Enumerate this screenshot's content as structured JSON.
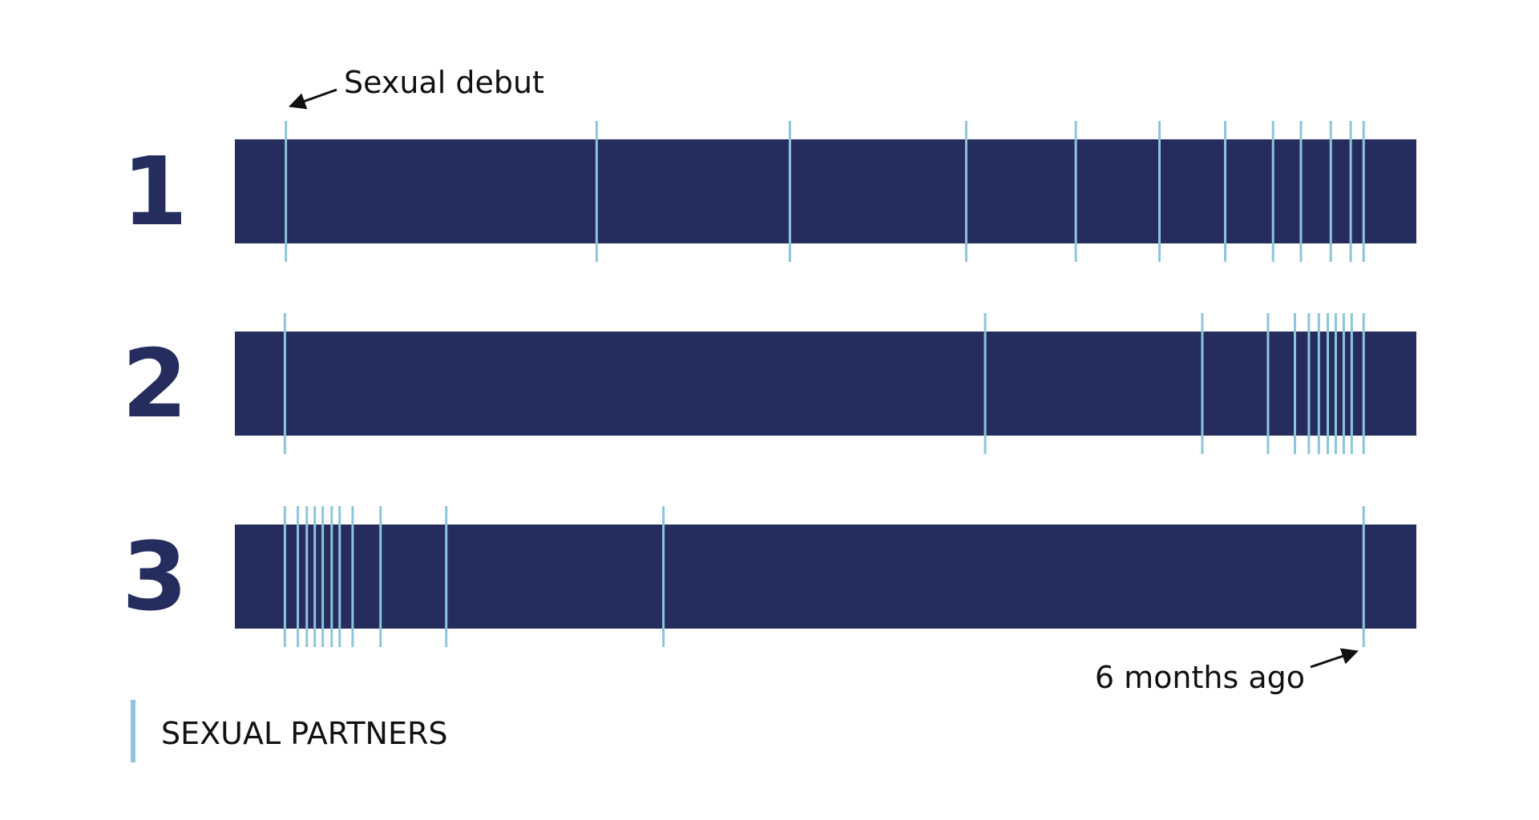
{
  "rows": [
    {
      "label": "1"
    },
    {
      "label": "2"
    },
    {
      "label": "3"
    }
  ],
  "annotations": {
    "start": "Sexual debut",
    "end": "6 months ago"
  },
  "legend": {
    "label": "SEXUAL PARTNERS"
  }
}
